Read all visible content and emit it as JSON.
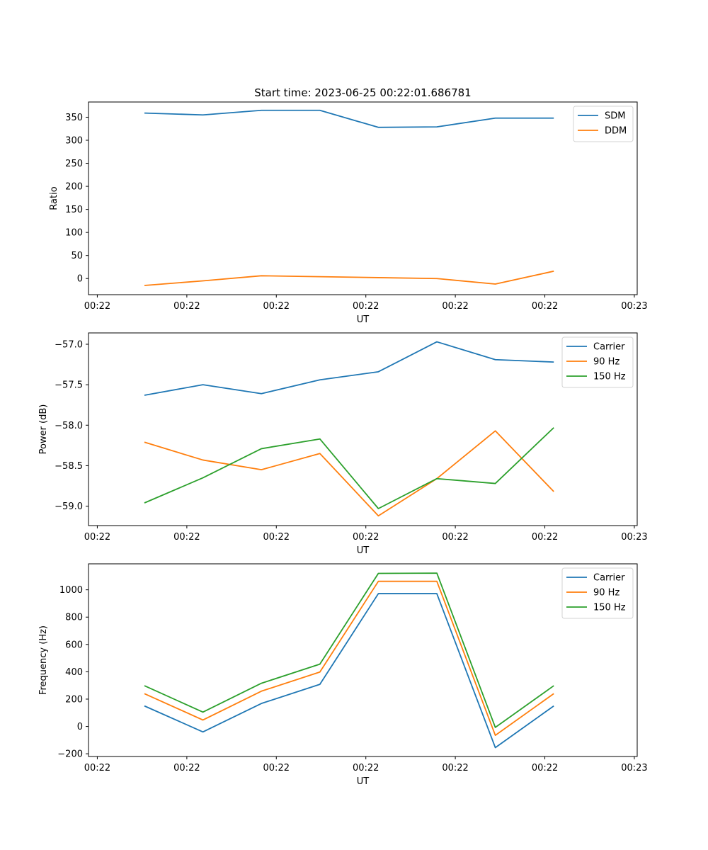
{
  "colors": {
    "blue": "#1f77b4",
    "orange": "#ff7f0e",
    "green": "#2ca02c"
  },
  "chart_data": [
    {
      "type": "line",
      "title": "Start time: 2023-06-25 00:22:01.686781",
      "xlabel": "UT",
      "ylabel": "Ratio",
      "xlim": [
        -1,
        8
      ],
      "ylim": [
        -35,
        383
      ],
      "x": [
        0,
        1,
        2,
        3,
        4,
        5,
        6,
        7
      ],
      "x_tick_positions": [
        -0.8,
        0.7,
        2.2,
        3.7,
        5.2,
        6.7,
        8.2
      ],
      "x_tick_labels": [
        "00:22",
        "00:22",
        "00:22",
        "00:22",
        "00:22",
        "00:22",
        "00:22"
      ],
      "x_tick_labels_extra": [
        "00:23"
      ],
      "y_ticks": [
        0,
        50,
        100,
        150,
        200,
        250,
        300,
        350
      ],
      "y_tick_labels": [
        "0",
        "50",
        "100",
        "150",
        "200",
        "250",
        "300",
        "350"
      ],
      "legend": "upper right",
      "series": [
        {
          "name": "SDM",
          "color": "#1f77b4",
          "values": [
            359,
            355,
            365,
            365,
            328,
            329,
            348,
            348
          ]
        },
        {
          "name": "DDM",
          "color": "#ff7f0e",
          "values": [
            -15,
            -5,
            6,
            4,
            2,
            0,
            -12,
            16
          ]
        }
      ]
    },
    {
      "type": "line",
      "title": "",
      "xlabel": "UT",
      "ylabel": "Power (dB)",
      "xlim": [
        -1,
        8
      ],
      "ylim": [
        -59.24,
        -56.86
      ],
      "x": [
        0,
        1,
        2,
        3,
        4,
        5,
        6,
        7
      ],
      "y_ticks": [
        -59.0,
        -58.5,
        -58.0,
        -57.5,
        -57.0
      ],
      "y_tick_labels": [
        "−59.0",
        "−58.5",
        "−58.0",
        "−57.5",
        "−57.0"
      ],
      "legend": "upper right",
      "series": [
        {
          "name": "Carrier",
          "color": "#1f77b4",
          "values": [
            -57.63,
            -57.5,
            -57.61,
            -57.44,
            -57.34,
            -56.97,
            -57.19,
            -57.22
          ]
        },
        {
          "name": "90 Hz",
          "color": "#ff7f0e",
          "values": [
            -58.21,
            -58.43,
            -58.55,
            -58.35,
            -59.12,
            -58.66,
            -58.07,
            -58.82
          ]
        },
        {
          "name": "150 Hz",
          "color": "#2ca02c",
          "values": [
            -58.96,
            -58.65,
            -58.29,
            -58.17,
            -59.03,
            -58.66,
            -58.72,
            -58.03
          ]
        }
      ]
    },
    {
      "type": "line",
      "title": "",
      "xlabel": "UT",
      "ylabel": "Frequency (Hz)",
      "xlim": [
        -1,
        8
      ],
      "ylim": [
        -220,
        1190
      ],
      "x": [
        0,
        1,
        2,
        3,
        4,
        5,
        6,
        7
      ],
      "y_ticks": [
        -200,
        0,
        200,
        400,
        600,
        800,
        1000
      ],
      "y_tick_labels": [
        "−200",
        "0",
        "200",
        "400",
        "600",
        "800",
        "1000"
      ],
      "legend": "upper right",
      "series": [
        {
          "name": "Carrier",
          "color": "#1f77b4",
          "values": [
            150,
            -40,
            168,
            308,
            972,
            972,
            -155,
            150
          ]
        },
        {
          "name": "90 Hz",
          "color": "#ff7f0e",
          "values": [
            240,
            47,
            258,
            398,
            1062,
            1062,
            -65,
            240
          ]
        },
        {
          "name": "150 Hz",
          "color": "#2ca02c",
          "values": [
            298,
            105,
            316,
            456,
            1120,
            1122,
            -7,
            298
          ]
        }
      ]
    }
  ]
}
